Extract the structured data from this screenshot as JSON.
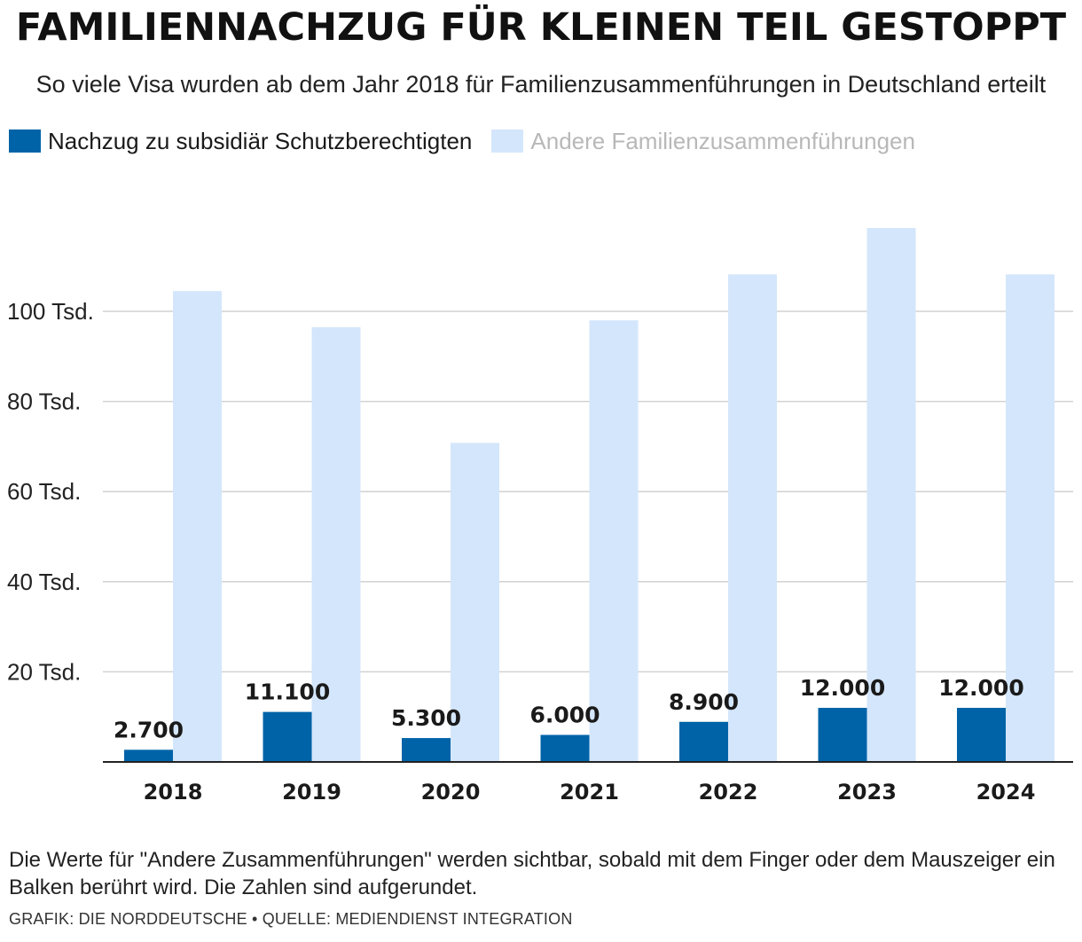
{
  "title": "FAMILIENNACHZUG FÜR KLEINEN TEIL GESTOPPT",
  "subtitle": "So viele Visa wurden ab dem Jahr 2018 für Familienzusammenführungen in Deutschland erteilt",
  "legend": [
    {
      "label": "Nachzug zu subsidiär Schutzberechtigten",
      "color": "#0063a8"
    },
    {
      "label": "Andere Familienzusammenführungen",
      "color": "#d4e6fb"
    }
  ],
  "note": "Die Werte für \"Andere Zusammenführungen\" werden sichtbar, sobald mit dem Finger oder dem Mauszeiger ein Balken berührt wird. Die Zahlen sind aufgerundet.",
  "source": "GRAFIK: DIE NORDDEUTSCHE • QUELLE: MEDIENDIENST INTEGRATION",
  "chart_data": {
    "type": "bar",
    "categories": [
      "2018",
      "2019",
      "2020",
      "2021",
      "2022",
      "2023",
      "2024"
    ],
    "series": [
      {
        "name": "Nachzug zu subsidiär Schutzberechtigten",
        "color": "#0063a8",
        "values": [
          2700,
          11100,
          5300,
          6000,
          8900,
          12000,
          12000
        ],
        "labels": [
          "2.700",
          "11.100",
          "5.300",
          "6.000",
          "8.900",
          "12.000",
          "12.000"
        ]
      },
      {
        "name": "Andere Familienzusammenführungen",
        "color": "#d4e6fb",
        "values": [
          104500,
          96500,
          70800,
          98000,
          108200,
          118500,
          108200
        ]
      }
    ],
    "yticks": [
      20000,
      40000,
      60000,
      80000,
      100000
    ],
    "ytick_labels": [
      "20 Tsd.",
      "40 Tsd.",
      "60 Tsd.",
      "80 Tsd.",
      "100 Tsd."
    ],
    "ylim": [
      0,
      125000
    ],
    "grid": true
  }
}
